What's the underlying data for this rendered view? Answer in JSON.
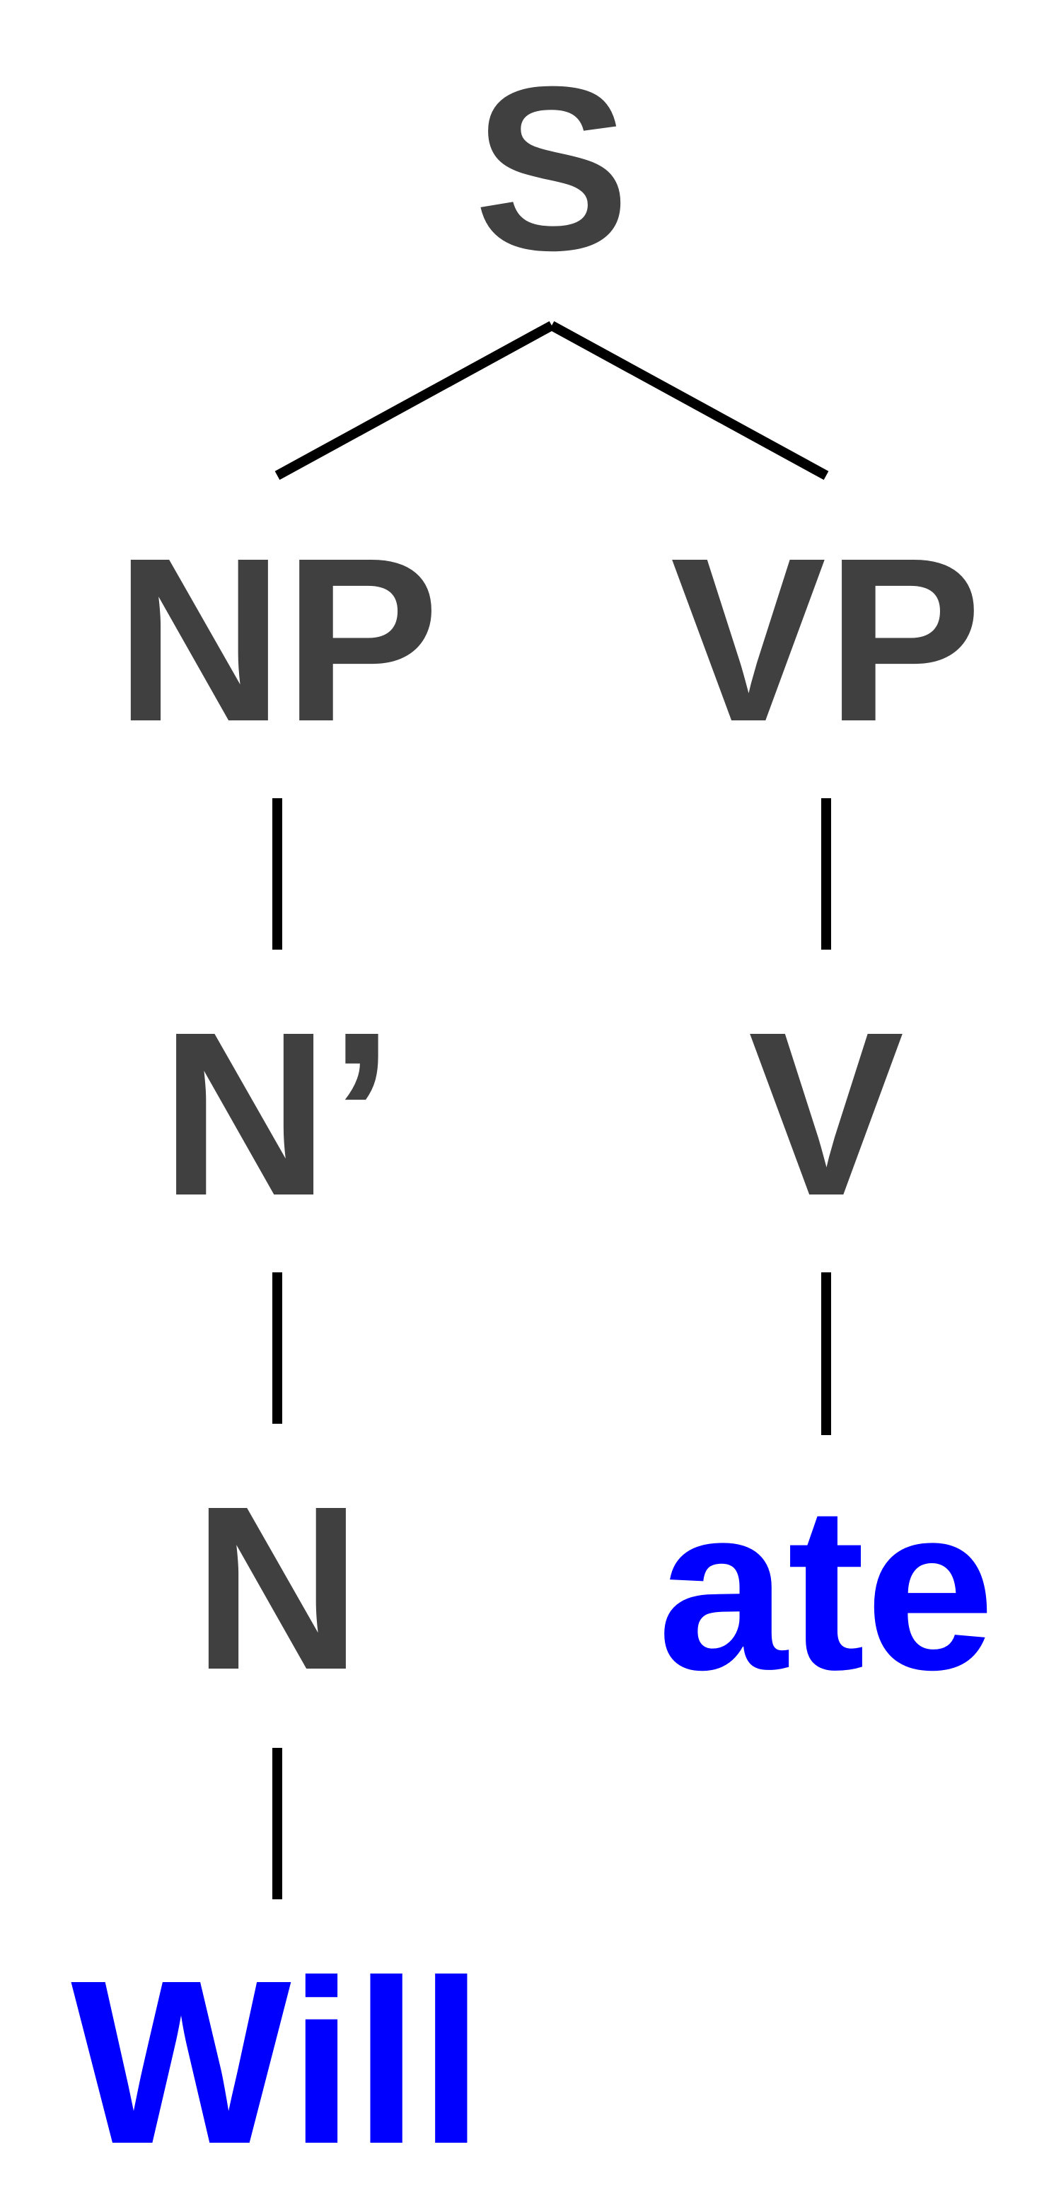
{
  "tree": {
    "colors": {
      "category": "#404040",
      "word": "#0000ff",
      "edge": "#000000"
    },
    "nodes": {
      "s": "S",
      "np": "NP",
      "vp": "VP",
      "nbar": "N’",
      "v": "V",
      "n": "N",
      "ate": "ate",
      "will": "Will"
    }
  }
}
